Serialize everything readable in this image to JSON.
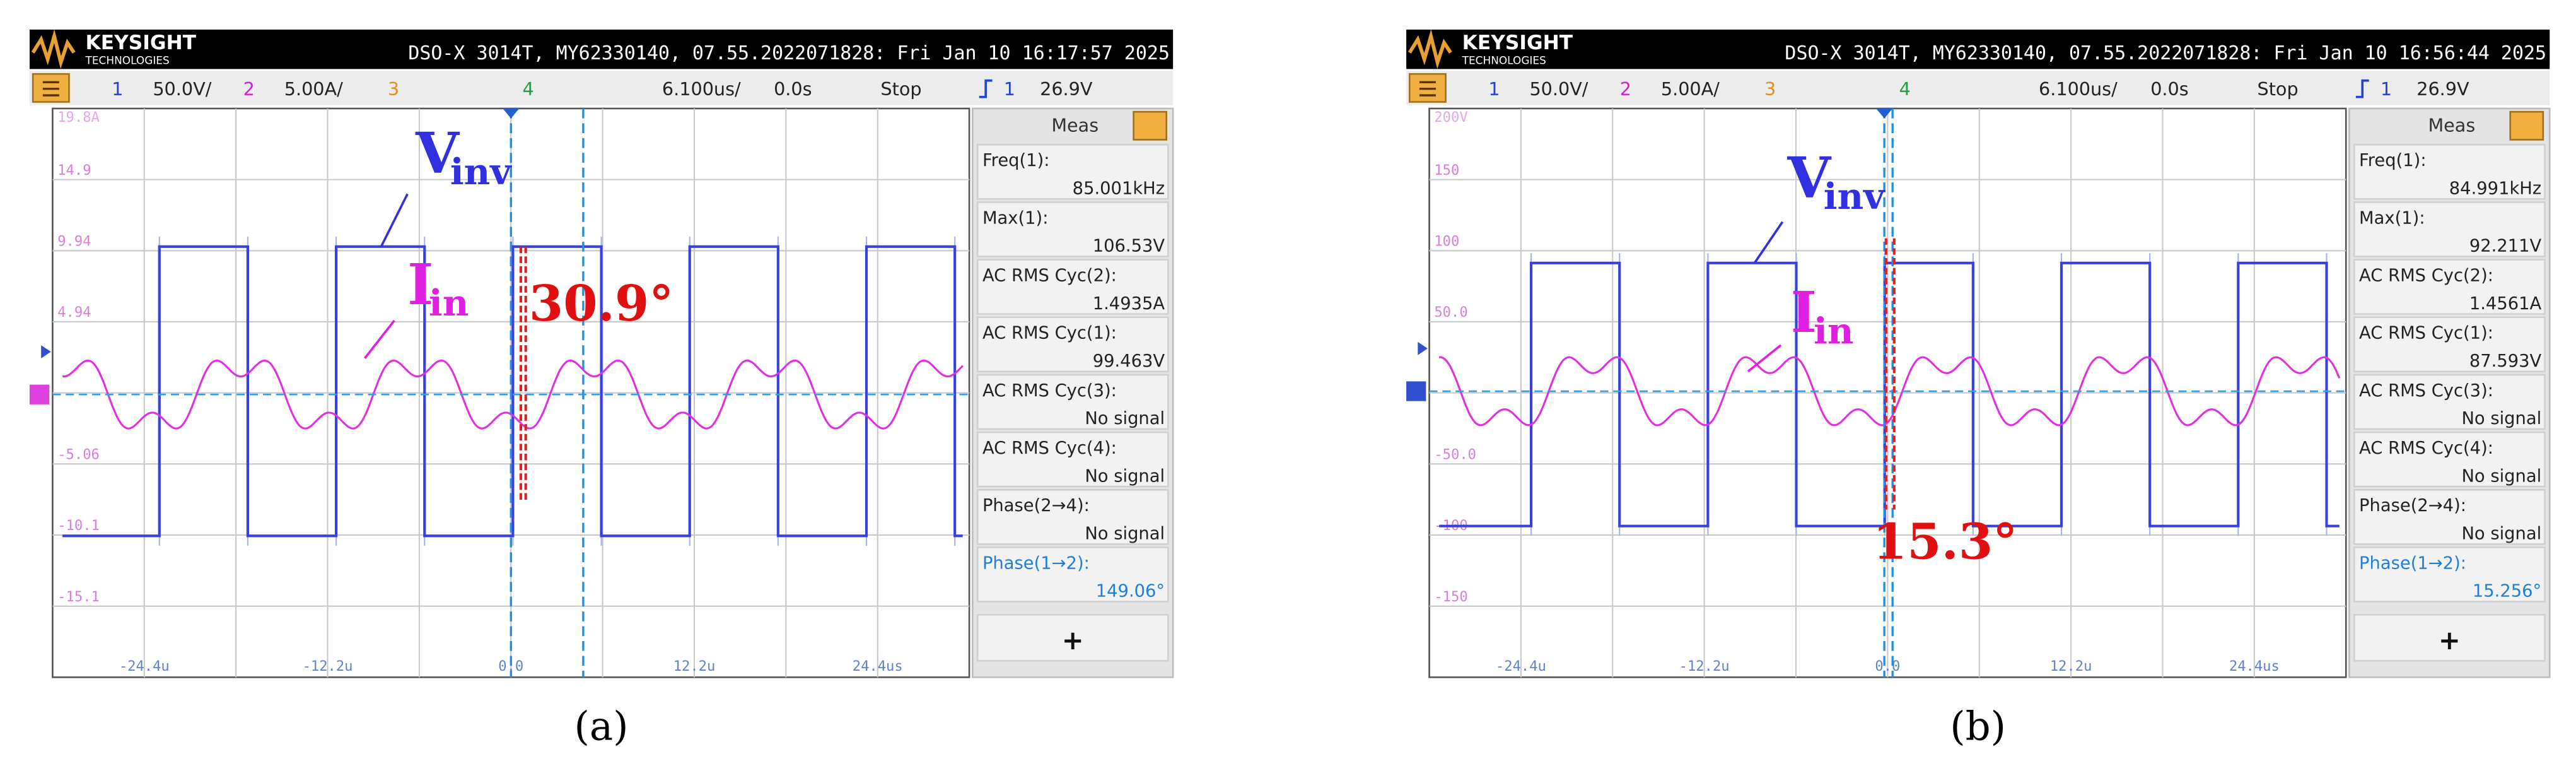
{
  "panels": [
    {
      "caption": "(a)",
      "header": {
        "brand": "KEYSIGHT",
        "brand_sub": "TECHNOLOGIES",
        "info": "DSO-X 3014T, MY62330140, 07.55.2022071828: Fri Jan 10 16:17:57 2025"
      },
      "toolbar": [
        "1",
        "50.0V/",
        "2",
        "5.00A/",
        "3",
        "4",
        "6.100us/",
        "0.0s",
        "Stop",
        "1",
        "26.9V"
      ],
      "y_labels": [
        "19.8A",
        "14.9",
        "9.94",
        "4.94",
        "-5.06",
        "-10.1",
        "-15.1"
      ],
      "x_labels": [
        "-24.4u",
        "-12.2u",
        "0.0",
        "12.2u",
        "24.4us"
      ],
      "meas": {
        "title": "Meas",
        "button": "+",
        "items": [
          {
            "label": "Freq(1):",
            "value": "85.001kHz"
          },
          {
            "label": "Max(1):",
            "value": "106.53V"
          },
          {
            "label": "AC RMS Cyc(2):",
            "value": "1.4935A"
          },
          {
            "label": "AC RMS Cyc(1):",
            "value": "99.463V"
          },
          {
            "label": "AC RMS Cyc(3):",
            "value": "No signal"
          },
          {
            "label": "AC RMS Cyc(4):",
            "value": "No signal"
          },
          {
            "label": "Phase(2→4):",
            "value": "No signal"
          },
          {
            "label": "Phase(1→2):",
            "value": "149.06°"
          }
        ]
      },
      "annotations": {
        "v": "V",
        "v_sub": "inv",
        "i": "I",
        "i_sub": "in",
        "phase": "30.9°"
      }
    },
    {
      "caption": "(b)",
      "header": {
        "brand": "KEYSIGHT",
        "brand_sub": "TECHNOLOGIES",
        "info": "DSO-X 3014T, MY62330140, 07.55.2022071828: Fri Jan 10 16:56:44 2025"
      },
      "toolbar": [
        "1",
        "50.0V/",
        "2",
        "5.00A/",
        "3",
        "4",
        "6.100us/",
        "0.0s",
        "Stop",
        "1",
        "26.9V"
      ],
      "y_labels": [
        "200V",
        "150",
        "100",
        "50.0",
        "-50.0",
        "-100",
        "-150"
      ],
      "x_labels": [
        "-24.4u",
        "-12.2u",
        "0.0",
        "12.2u",
        "24.4us"
      ],
      "meas": {
        "title": "Meas",
        "button": "+",
        "items": [
          {
            "label": "Freq(1):",
            "value": "84.991kHz"
          },
          {
            "label": "Max(1):",
            "value": "92.211V"
          },
          {
            "label": "AC RMS Cyc(2):",
            "value": "1.4561A"
          },
          {
            "label": "AC RMS Cyc(1):",
            "value": "87.593V"
          },
          {
            "label": "AC RMS Cyc(3):",
            "value": "No signal"
          },
          {
            "label": "AC RMS Cyc(4):",
            "value": "No signal"
          },
          {
            "label": "Phase(2→4):",
            "value": "No signal"
          },
          {
            "label": "Phase(1→2):",
            "value": "15.256°"
          }
        ]
      },
      "annotations": {
        "v": "V",
        "v_sub": "inv",
        "i": "I",
        "i_sub": "in",
        "phase": "15.3°"
      }
    }
  ]
}
